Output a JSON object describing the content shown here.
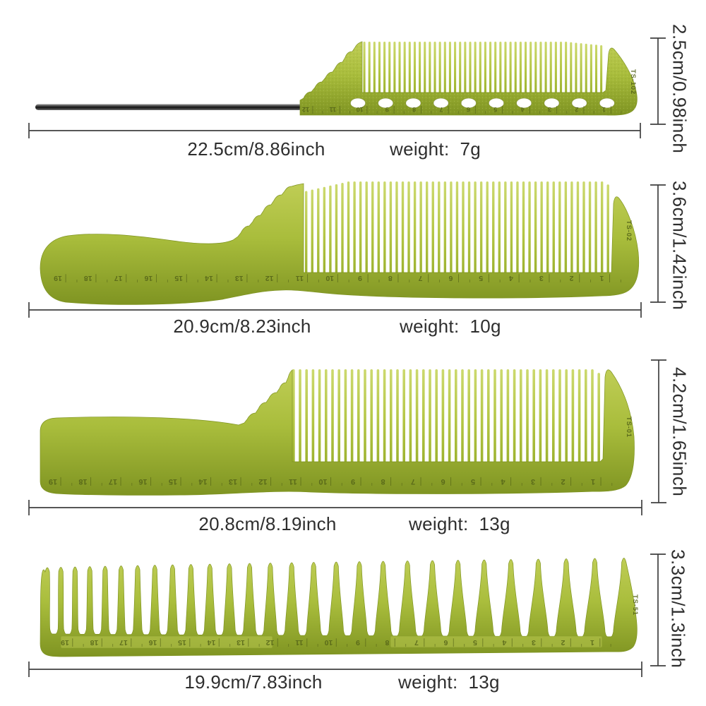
{
  "combs": [
    {
      "name": "pin-tail-comb",
      "model": "TS-102",
      "length": "22.5cm/8.86inch",
      "weight": "weight:  7g",
      "height": "2.5cm/0.98inch",
      "ruler_numbers": [
        12,
        11,
        10,
        9,
        8,
        7,
        6,
        5,
        4,
        3,
        2,
        1
      ]
    },
    {
      "name": "handle-cutting-comb",
      "model": "TS-02",
      "length": "20.9cm/8.23inch",
      "weight": "weight:  10g",
      "height": "3.6cm/1.42inch",
      "ruler_numbers": [
        19,
        18,
        17,
        16,
        15,
        14,
        13,
        12,
        11,
        10,
        9,
        8,
        7,
        6,
        5,
        4,
        3,
        2,
        1
      ]
    },
    {
      "name": "clipper-comb",
      "model": "TS-01",
      "length": "20.8cm/8.19inch",
      "weight": "weight:  13g",
      "height": "4.2cm/1.65inch",
      "ruler_numbers": [
        19,
        18,
        17,
        16,
        15,
        14,
        13,
        12,
        11,
        10,
        9,
        8,
        7,
        6,
        5,
        4,
        3,
        2,
        1
      ]
    },
    {
      "name": "wide-tooth-comb",
      "model": "TS-51",
      "length": "19.9cm/7.83inch",
      "weight": "weight:  13g",
      "height": "3.3cm/1.3inch",
      "ruler_numbers": [
        19,
        18,
        17,
        16,
        15,
        14,
        13,
        12,
        11,
        10,
        9,
        8,
        7,
        6,
        5,
        4,
        3,
        2,
        1
      ]
    }
  ],
  "colors": {
    "comb_green": "#a9bd3c",
    "comb_green_light": "#ccd96e",
    "comb_green_mid": "#b4c645",
    "comb_green_dark": "#7f9422",
    "ruler_print": "#4f5e16",
    "metal_pin_dark": "#141414",
    "metal_pin_light": "#9b9b9b",
    "dimension_line": "#3f3f3f",
    "label_text": "#2e2e2e",
    "background": "#ffffff"
  }
}
